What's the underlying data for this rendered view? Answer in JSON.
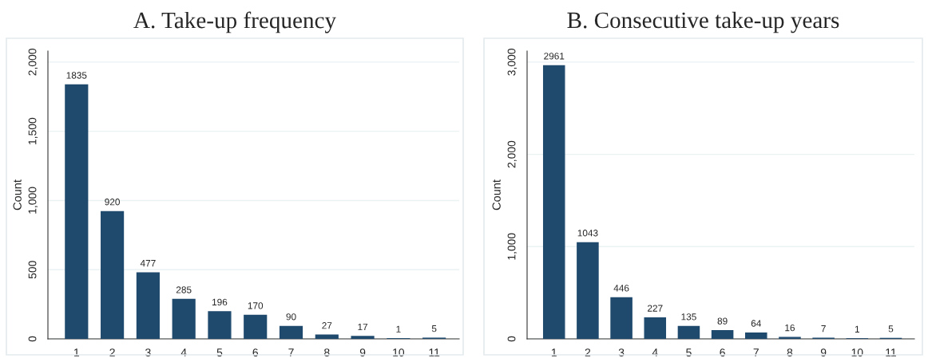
{
  "chart_data": [
    {
      "type": "bar",
      "title": "A. Take-up frequency",
      "ylabel": "Count",
      "categories": [
        "1",
        "2",
        "3",
        "4",
        "5",
        "6",
        "7",
        "8",
        "9",
        "10",
        "11"
      ],
      "values": [
        1835,
        920,
        477,
        285,
        196,
        170,
        90,
        27,
        17,
        1,
        5
      ],
      "color": "#1f4a6e",
      "ylim": [
        0,
        2080
      ],
      "yticks": [
        0,
        500,
        {
          "value": 1000,
          "label": "1,000"
        },
        {
          "value": 1500,
          "label": "1,500"
        },
        {
          "value": 2000,
          "label": "2,000"
        }
      ],
      "grid": "y",
      "data_labels": true
    },
    {
      "type": "bar",
      "title": "B. Consecutive take-up years",
      "ylabel": "Count",
      "categories": [
        "1",
        "2",
        "3",
        "4",
        "5",
        "6",
        "7",
        "8",
        "9",
        "10",
        "11"
      ],
      "values": [
        2961,
        1043,
        446,
        227,
        135,
        89,
        64,
        16,
        7,
        1,
        5
      ],
      "color": "#1f4a6e",
      "ylim": [
        0,
        3120
      ],
      "yticks": [
        0,
        {
          "value": 1000,
          "label": "1,000"
        },
        {
          "value": 2000,
          "label": "2,000"
        },
        {
          "value": 3000,
          "label": "3,000"
        }
      ],
      "grid": "y",
      "data_labels": true
    }
  ]
}
